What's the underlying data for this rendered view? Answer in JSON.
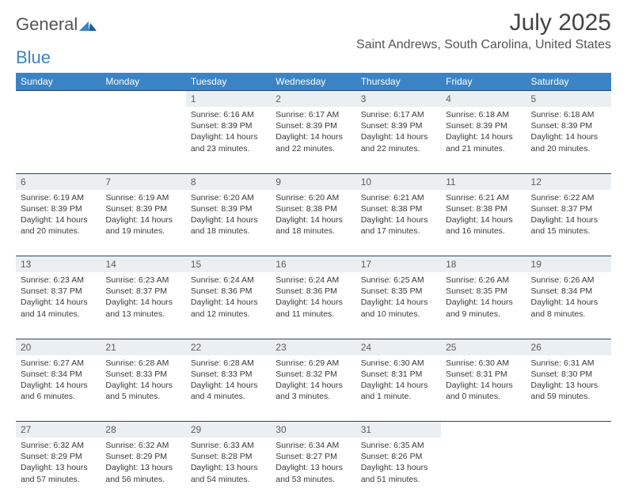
{
  "brand": {
    "word1": "General",
    "word2": "Blue"
  },
  "title": {
    "month": "July 2025",
    "location": "Saint Andrews, South Carolina, United States"
  },
  "colors": {
    "header_bg": "#3a84c5",
    "header_text": "#ffffff",
    "daynum_bg": "#eceff1",
    "daynum_text": "#5c5c5c",
    "border": "#2b4868",
    "body_text": "#3a3a3a",
    "page_bg": "#ffffff"
  },
  "weekdays": [
    "Sunday",
    "Monday",
    "Tuesday",
    "Wednesday",
    "Thursday",
    "Friday",
    "Saturday"
  ],
  "layout": {
    "first_weekday_index": 2,
    "days_in_month": 31,
    "columns": 7
  },
  "days": {
    "1": {
      "sunrise": "6:16 AM",
      "sunset": "8:39 PM",
      "daylight": "14 hours and 23 minutes."
    },
    "2": {
      "sunrise": "6:17 AM",
      "sunset": "8:39 PM",
      "daylight": "14 hours and 22 minutes."
    },
    "3": {
      "sunrise": "6:17 AM",
      "sunset": "8:39 PM",
      "daylight": "14 hours and 22 minutes."
    },
    "4": {
      "sunrise": "6:18 AM",
      "sunset": "8:39 PM",
      "daylight": "14 hours and 21 minutes."
    },
    "5": {
      "sunrise": "6:18 AM",
      "sunset": "8:39 PM",
      "daylight": "14 hours and 20 minutes."
    },
    "6": {
      "sunrise": "6:19 AM",
      "sunset": "8:39 PM",
      "daylight": "14 hours and 20 minutes."
    },
    "7": {
      "sunrise": "6:19 AM",
      "sunset": "8:39 PM",
      "daylight": "14 hours and 19 minutes."
    },
    "8": {
      "sunrise": "6:20 AM",
      "sunset": "8:39 PM",
      "daylight": "14 hours and 18 minutes."
    },
    "9": {
      "sunrise": "6:20 AM",
      "sunset": "8:38 PM",
      "daylight": "14 hours and 18 minutes."
    },
    "10": {
      "sunrise": "6:21 AM",
      "sunset": "8:38 PM",
      "daylight": "14 hours and 17 minutes."
    },
    "11": {
      "sunrise": "6:21 AM",
      "sunset": "8:38 PM",
      "daylight": "14 hours and 16 minutes."
    },
    "12": {
      "sunrise": "6:22 AM",
      "sunset": "8:37 PM",
      "daylight": "14 hours and 15 minutes."
    },
    "13": {
      "sunrise": "6:23 AM",
      "sunset": "8:37 PM",
      "daylight": "14 hours and 14 minutes."
    },
    "14": {
      "sunrise": "6:23 AM",
      "sunset": "8:37 PM",
      "daylight": "14 hours and 13 minutes."
    },
    "15": {
      "sunrise": "6:24 AM",
      "sunset": "8:36 PM",
      "daylight": "14 hours and 12 minutes."
    },
    "16": {
      "sunrise": "6:24 AM",
      "sunset": "8:36 PM",
      "daylight": "14 hours and 11 minutes."
    },
    "17": {
      "sunrise": "6:25 AM",
      "sunset": "8:35 PM",
      "daylight": "14 hours and 10 minutes."
    },
    "18": {
      "sunrise": "6:26 AM",
      "sunset": "8:35 PM",
      "daylight": "14 hours and 9 minutes."
    },
    "19": {
      "sunrise": "6:26 AM",
      "sunset": "8:34 PM",
      "daylight": "14 hours and 8 minutes."
    },
    "20": {
      "sunrise": "6:27 AM",
      "sunset": "8:34 PM",
      "daylight": "14 hours and 6 minutes."
    },
    "21": {
      "sunrise": "6:28 AM",
      "sunset": "8:33 PM",
      "daylight": "14 hours and 5 minutes."
    },
    "22": {
      "sunrise": "6:28 AM",
      "sunset": "8:33 PM",
      "daylight": "14 hours and 4 minutes."
    },
    "23": {
      "sunrise": "6:29 AM",
      "sunset": "8:32 PM",
      "daylight": "14 hours and 3 minutes."
    },
    "24": {
      "sunrise": "6:30 AM",
      "sunset": "8:31 PM",
      "daylight": "14 hours and 1 minute."
    },
    "25": {
      "sunrise": "6:30 AM",
      "sunset": "8:31 PM",
      "daylight": "14 hours and 0 minutes."
    },
    "26": {
      "sunrise": "6:31 AM",
      "sunset": "8:30 PM",
      "daylight": "13 hours and 59 minutes."
    },
    "27": {
      "sunrise": "6:32 AM",
      "sunset": "8:29 PM",
      "daylight": "13 hours and 57 minutes."
    },
    "28": {
      "sunrise": "6:32 AM",
      "sunset": "8:29 PM",
      "daylight": "13 hours and 56 minutes."
    },
    "29": {
      "sunrise": "6:33 AM",
      "sunset": "8:28 PM",
      "daylight": "13 hours and 54 minutes."
    },
    "30": {
      "sunrise": "6:34 AM",
      "sunset": "8:27 PM",
      "daylight": "13 hours and 53 minutes."
    },
    "31": {
      "sunrise": "6:35 AM",
      "sunset": "8:26 PM",
      "daylight": "13 hours and 51 minutes."
    }
  },
  "labels": {
    "sunrise": "Sunrise:",
    "sunset": "Sunset:",
    "daylight": "Daylight:"
  }
}
